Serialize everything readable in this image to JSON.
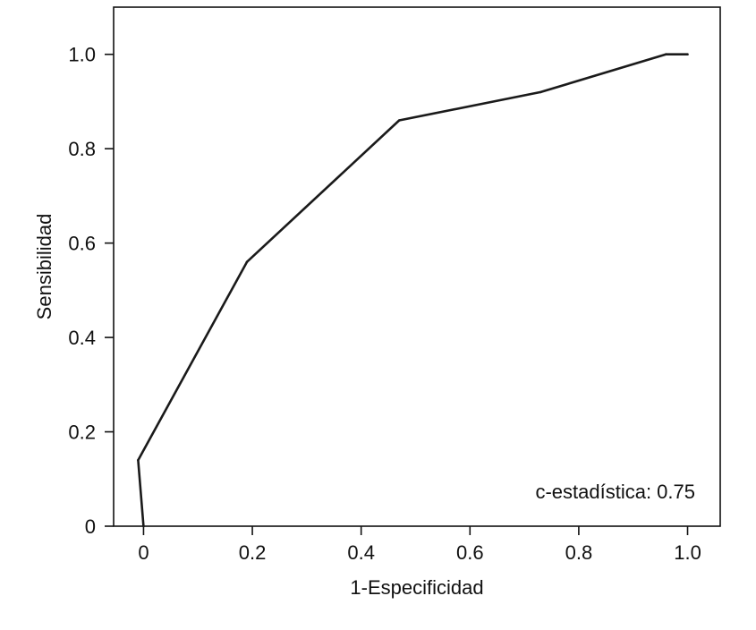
{
  "chart_data": {
    "type": "line",
    "xlabel": "1-Especificidad",
    "ylabel": "Sensibilidad",
    "xlim": [
      -0.055,
      1.06
    ],
    "ylim": [
      0,
      1.1
    ],
    "x_ticks": [
      0,
      0.2,
      0.4,
      0.6,
      0.8,
      1.0
    ],
    "x_tick_labels": [
      "0",
      "0.2",
      "0.4",
      "0.6",
      "0.8",
      "1.0"
    ],
    "y_ticks": [
      0,
      0.2,
      0.4,
      0.6,
      0.8,
      1.0
    ],
    "y_tick_labels": [
      "0",
      "0.2",
      "0.4",
      "0.6",
      "0.8",
      "1.0"
    ],
    "grid": false,
    "series": [
      {
        "x": [
          0.0,
          -0.01,
          0.19,
          0.47,
          0.73,
          0.96,
          1.0
        ],
        "y": [
          0.0,
          0.14,
          0.56,
          0.86,
          0.92,
          1.0,
          1.0
        ],
        "color": "#1a1a1a"
      }
    ],
    "annotation": "c-estadística: 0.75"
  }
}
